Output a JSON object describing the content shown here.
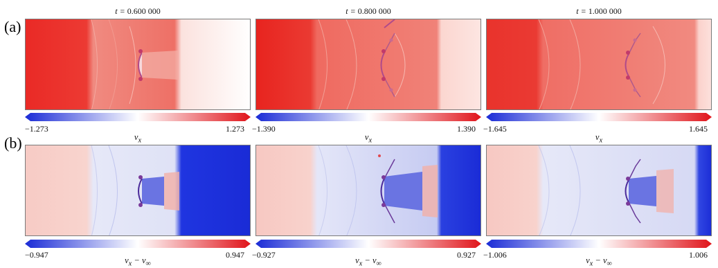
{
  "figure": {
    "row_a_label": "(a)",
    "row_b_label": "(b)",
    "time_prefix": "t = ",
    "times": [
      "0.600 000",
      "0.800 000",
      "1.000 000"
    ],
    "row_a_quantity": "v",
    "row_a_quantity_sub": "x",
    "row_b_quantity": "v",
    "row_b_quantity_sub": "x",
    "row_b_quantity_mid": " − v",
    "row_b_quantity_sub2": "∞",
    "row_a_ranges": [
      {
        "min": "−1.273",
        "max": "1.273"
      },
      {
        "min": "−1.390",
        "max": "1.390"
      },
      {
        "min": "−1.645",
        "max": "1.645"
      }
    ],
    "row_b_ranges": [
      {
        "min": "−0.947",
        "max": "0.947"
      },
      {
        "min": "−0.927",
        "max": "0.927"
      },
      {
        "min": "−1.006",
        "max": "1.006"
      }
    ],
    "colors": {
      "low": "#1a2bd6",
      "mid": "#ffffff",
      "high": "#e0141a"
    }
  }
}
